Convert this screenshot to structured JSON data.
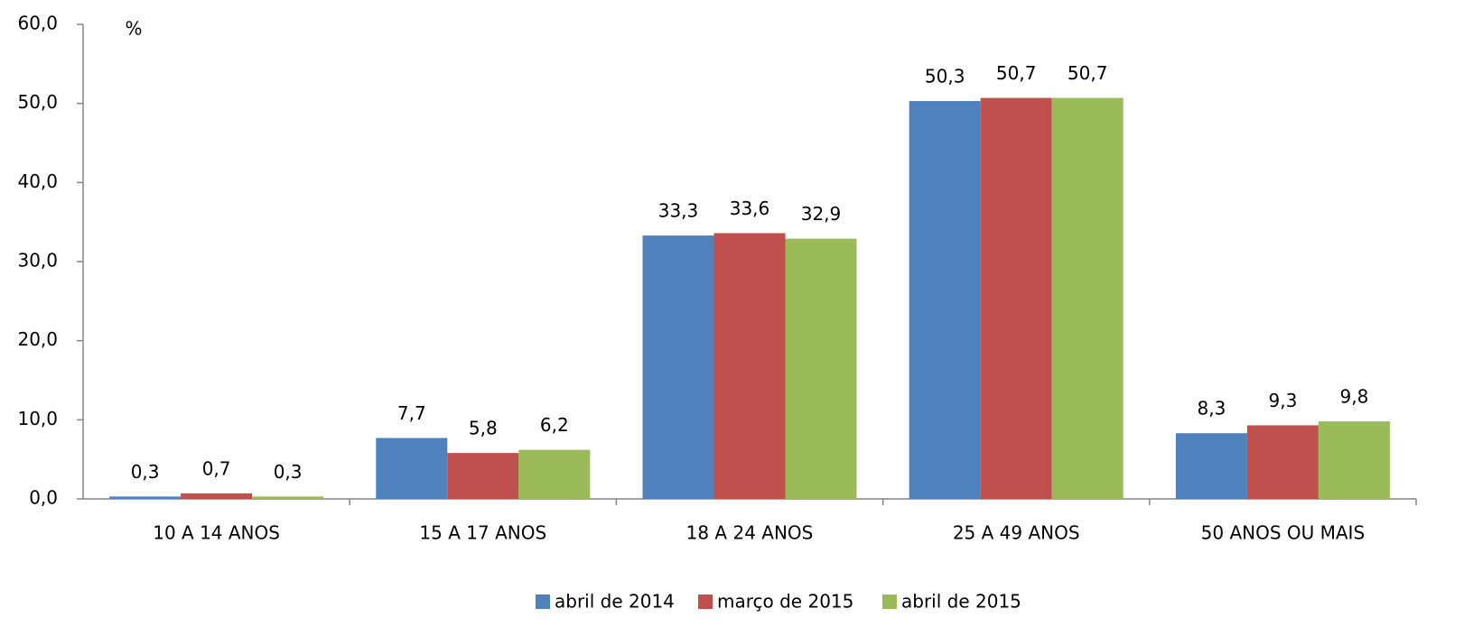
{
  "chart_data": {
    "type": "bar",
    "y_label": "%",
    "categories": [
      "10 A 14 ANOS",
      "15 A 17 ANOS",
      "18 A 24 ANOS",
      "25 A 49 ANOS",
      "50 ANOS OU MAIS"
    ],
    "series": [
      {
        "name": "abril de 2014",
        "color": "#4f81bd",
        "values": [
          0.3,
          7.7,
          33.3,
          50.3,
          8.3
        ],
        "value_labels": [
          "0,3",
          "7,7",
          "33,3",
          "50,3",
          "8,3"
        ]
      },
      {
        "name": "março de 2015",
        "color": "#c0504d",
        "values": [
          0.7,
          5.8,
          33.6,
          50.7,
          9.3
        ],
        "value_labels": [
          "0,7",
          "5,8",
          "33,6",
          "50,7",
          "9,3"
        ]
      },
      {
        "name": "abril de 2015",
        "color": "#9bbb59",
        "values": [
          0.3,
          6.2,
          32.9,
          50.7,
          9.8
        ],
        "value_labels": [
          "0,3",
          "6,2",
          "32,9",
          "50,7",
          "9,8"
        ]
      }
    ],
    "ylim": [
      0,
      60
    ],
    "yticks": [
      {
        "value": 0,
        "label": "0,0"
      },
      {
        "value": 10,
        "label": "10,0"
      },
      {
        "value": 20,
        "label": "20,0"
      },
      {
        "value": 30,
        "label": "30,0"
      },
      {
        "value": 40,
        "label": "40,0"
      },
      {
        "value": 50,
        "label": "50,0"
      },
      {
        "value": 60,
        "label": "60,0"
      }
    ],
    "grid": false,
    "legend": "bottom"
  }
}
